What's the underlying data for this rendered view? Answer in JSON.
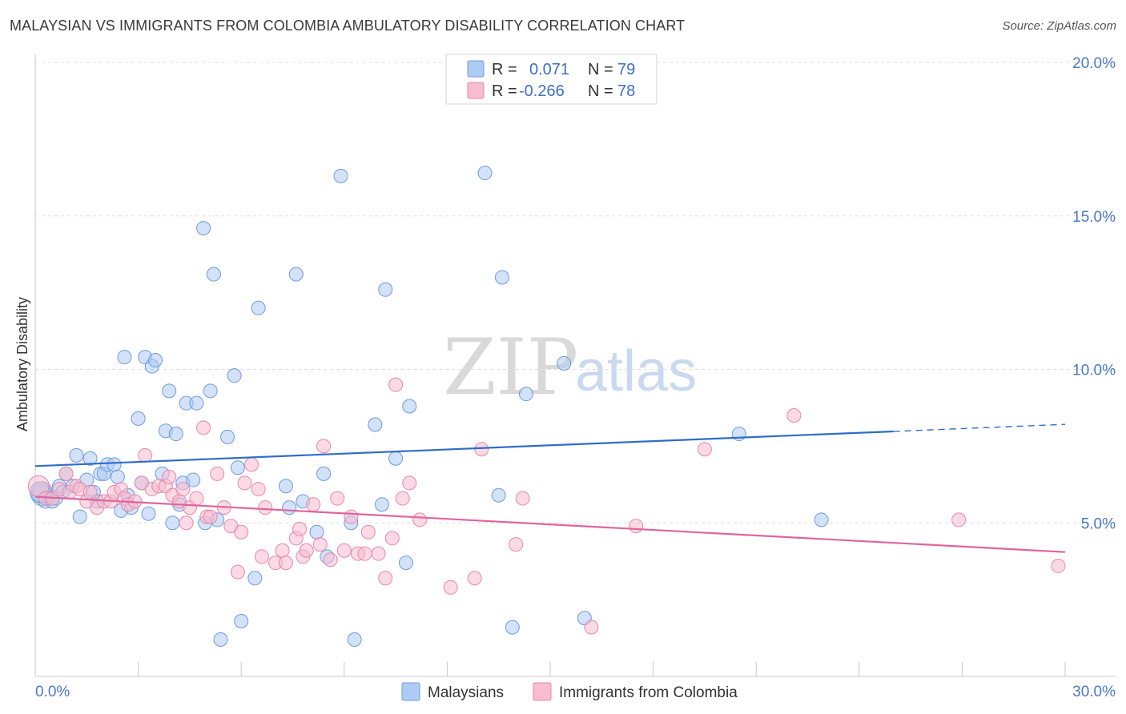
{
  "chart_data": {
    "type": "scatter",
    "title": "MALAYSIAN VS IMMIGRANTS FROM COLOMBIA AMBULATORY DISABILITY CORRELATION CHART",
    "source": "Source: ZipAtlas.com",
    "ylabel": "Ambulatory Disability",
    "xlim": [
      0,
      30
    ],
    "ylim": [
      0,
      20
    ],
    "x_tick_labels": {
      "min": "0.0%",
      "max": "30.0%"
    },
    "y_ticks": [
      {
        "value": 5,
        "label": "5.0%"
      },
      {
        "value": 10,
        "label": "10.0%"
      },
      {
        "value": 15,
        "label": "15.0%"
      },
      {
        "value": 20,
        "label": "20.0%"
      }
    ],
    "watermark": {
      "part1": "ZIP",
      "part2": "atlas"
    },
    "legend": [
      {
        "r_label": "R =",
        "r_value": "0.071",
        "n_label": "N =",
        "n_value": "79"
      },
      {
        "r_label": "R =",
        "r_value": "-0.266",
        "n_label": "N =",
        "n_value": "78"
      }
    ],
    "series": [
      {
        "name": "Malaysians",
        "fill": "#aecbf3",
        "stroke": "#6d9be0",
        "trend_color": "#2f6dc8",
        "trend": {
          "x0": 0,
          "y0": 6.85,
          "x1": 25,
          "y1": 7.98,
          "x_dash_end": 30,
          "y_dash_end": 8.21
        },
        "points": [
          [
            0.2,
            6.0
          ],
          [
            0.2,
            5.9
          ],
          [
            0.3,
            5.7
          ],
          [
            0.4,
            5.8
          ],
          [
            0.5,
            5.7
          ],
          [
            0.6,
            5.8
          ],
          [
            0.7,
            6.2
          ],
          [
            0.8,
            6.0
          ],
          [
            0.9,
            6.6
          ],
          [
            1.1,
            6.2
          ],
          [
            1.2,
            7.2
          ],
          [
            1.3,
            5.2
          ],
          [
            1.5,
            6.4
          ],
          [
            1.6,
            7.1
          ],
          [
            1.7,
            6.0
          ],
          [
            1.8,
            5.7
          ],
          [
            1.9,
            6.6
          ],
          [
            2.0,
            6.6
          ],
          [
            2.1,
            6.9
          ],
          [
            2.3,
            6.9
          ],
          [
            2.4,
            6.5
          ],
          [
            2.5,
            5.4
          ],
          [
            2.6,
            10.4
          ],
          [
            2.7,
            5.9
          ],
          [
            2.8,
            5.5
          ],
          [
            3.0,
            8.4
          ],
          [
            3.1,
            6.3
          ],
          [
            3.2,
            10.4
          ],
          [
            3.3,
            5.3
          ],
          [
            3.4,
            10.1
          ],
          [
            3.5,
            10.3
          ],
          [
            3.7,
            6.6
          ],
          [
            3.8,
            8.0
          ],
          [
            3.9,
            9.3
          ],
          [
            4.0,
            5.0
          ],
          [
            4.1,
            7.9
          ],
          [
            4.2,
            5.6
          ],
          [
            4.3,
            6.3
          ],
          [
            4.4,
            8.9
          ],
          [
            4.6,
            6.4
          ],
          [
            4.7,
            8.9
          ],
          [
            4.9,
            14.6
          ],
          [
            4.95,
            5.0
          ],
          [
            5.1,
            9.3
          ],
          [
            5.2,
            13.1
          ],
          [
            5.3,
            5.1
          ],
          [
            5.4,
            1.2
          ],
          [
            5.6,
            7.8
          ],
          [
            5.8,
            9.8
          ],
          [
            5.9,
            6.8
          ],
          [
            6.0,
            1.8
          ],
          [
            6.4,
            3.2
          ],
          [
            6.5,
            12.0
          ],
          [
            7.3,
            6.2
          ],
          [
            7.4,
            5.5
          ],
          [
            7.6,
            13.1
          ],
          [
            7.8,
            5.7
          ],
          [
            8.2,
            4.7
          ],
          [
            8.4,
            6.6
          ],
          [
            8.5,
            3.9
          ],
          [
            8.9,
            16.3
          ],
          [
            9.2,
            5.0
          ],
          [
            9.3,
            1.2
          ],
          [
            9.9,
            8.2
          ],
          [
            10.1,
            5.6
          ],
          [
            10.2,
            12.6
          ],
          [
            10.5,
            7.1
          ],
          [
            10.8,
            3.7
          ],
          [
            10.9,
            8.8
          ],
          [
            13.1,
            16.4
          ],
          [
            13.5,
            5.9
          ],
          [
            13.6,
            13.0
          ],
          [
            13.9,
            1.6
          ],
          [
            14.3,
            9.2
          ],
          [
            15.4,
            10.2
          ],
          [
            16.0,
            1.9
          ],
          [
            20.5,
            7.9
          ],
          [
            22.9,
            5.1
          ],
          [
            0.15,
            6.0
          ]
        ]
      },
      {
        "name": "Immigrants from Colombia",
        "fill": "#f7bcd0",
        "stroke": "#e887a8",
        "trend_color": "#e0659a",
        "trend": {
          "x0": 0,
          "y0": 5.85,
          "x1": 30,
          "y1": 4.05
        },
        "points": [
          [
            0.1,
            6.2
          ],
          [
            0.3,
            5.8
          ],
          [
            0.5,
            5.8
          ],
          [
            0.7,
            6.1
          ],
          [
            0.9,
            6.6
          ],
          [
            1.0,
            6.0
          ],
          [
            1.2,
            6.2
          ],
          [
            1.3,
            6.1
          ],
          [
            1.5,
            5.7
          ],
          [
            1.6,
            6.0
          ],
          [
            1.8,
            5.5
          ],
          [
            2.0,
            5.7
          ],
          [
            2.2,
            5.7
          ],
          [
            2.3,
            6.0
          ],
          [
            2.5,
            6.1
          ],
          [
            2.6,
            5.8
          ],
          [
            2.7,
            5.6
          ],
          [
            2.9,
            5.7
          ],
          [
            3.1,
            6.3
          ],
          [
            3.2,
            7.2
          ],
          [
            3.4,
            6.1
          ],
          [
            3.6,
            6.2
          ],
          [
            3.8,
            6.2
          ],
          [
            3.9,
            6.5
          ],
          [
            4.0,
            5.9
          ],
          [
            4.2,
            5.7
          ],
          [
            4.3,
            6.1
          ],
          [
            4.4,
            5.0
          ],
          [
            4.5,
            5.5
          ],
          [
            4.7,
            5.8
          ],
          [
            4.9,
            8.1
          ],
          [
            5.0,
            5.2
          ],
          [
            5.1,
            5.2
          ],
          [
            5.3,
            6.6
          ],
          [
            5.5,
            5.5
          ],
          [
            5.7,
            4.9
          ],
          [
            5.9,
            3.4
          ],
          [
            6.0,
            4.7
          ],
          [
            6.1,
            6.3
          ],
          [
            6.3,
            6.9
          ],
          [
            6.5,
            6.1
          ],
          [
            6.6,
            3.9
          ],
          [
            6.7,
            5.5
          ],
          [
            7.0,
            3.7
          ],
          [
            7.2,
            4.1
          ],
          [
            7.3,
            3.7
          ],
          [
            7.6,
            4.5
          ],
          [
            7.7,
            4.8
          ],
          [
            7.8,
            3.9
          ],
          [
            7.9,
            4.1
          ],
          [
            8.1,
            5.6
          ],
          [
            8.3,
            4.3
          ],
          [
            8.4,
            7.5
          ],
          [
            8.6,
            3.8
          ],
          [
            8.8,
            5.8
          ],
          [
            9.0,
            4.1
          ],
          [
            9.2,
            5.2
          ],
          [
            9.4,
            4.0
          ],
          [
            9.6,
            4.0
          ],
          [
            9.7,
            4.7
          ],
          [
            10.0,
            4.0
          ],
          [
            10.2,
            3.2
          ],
          [
            10.4,
            4.5
          ],
          [
            10.5,
            9.5
          ],
          [
            10.7,
            5.8
          ],
          [
            10.9,
            6.3
          ],
          [
            11.2,
            5.1
          ],
          [
            12.1,
            2.9
          ],
          [
            12.8,
            3.2
          ],
          [
            13.0,
            7.4
          ],
          [
            14.0,
            4.3
          ],
          [
            14.2,
            5.8
          ],
          [
            16.2,
            1.6
          ],
          [
            17.5,
            4.9
          ],
          [
            19.5,
            7.4
          ],
          [
            22.1,
            8.5
          ],
          [
            26.9,
            5.1
          ],
          [
            29.8,
            3.6
          ]
        ]
      }
    ]
  }
}
